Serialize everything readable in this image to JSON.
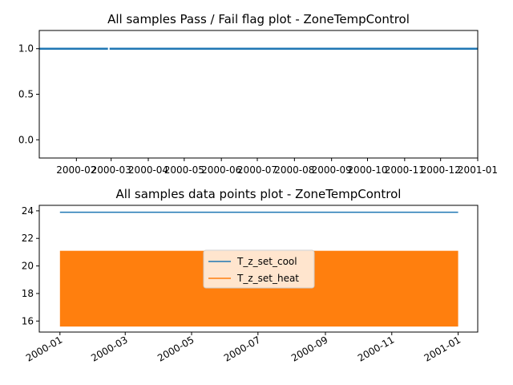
{
  "chart_data": [
    {
      "type": "line",
      "title": "All samples Pass / Fail flag plot - ZoneTempControl",
      "xlabel": "",
      "ylabel": "",
      "xlim": [
        "2000-01-01",
        "2001-01-01"
      ],
      "ylim": [
        -0.2,
        1.2
      ],
      "yticks": [
        0.0,
        0.5,
        1.0
      ],
      "ytick_labels": [
        "0.0",
        "0.5",
        "1.0"
      ],
      "xticks": [
        "2000-02-01",
        "2000-03-01",
        "2000-04-01",
        "2000-05-01",
        "2000-06-01",
        "2000-07-01",
        "2000-08-01",
        "2000-09-01",
        "2000-10-01",
        "2000-11-01",
        "2000-12-01",
        "2001-01-01"
      ],
      "xtick_labels": [
        "2000-02",
        "2000-03",
        "2000-04",
        "2000-05",
        "2000-06",
        "2000-07",
        "2000-08",
        "2000-09",
        "2000-10",
        "2000-11",
        "2000-12",
        "2001-01"
      ],
      "grid": false,
      "series": [
        {
          "color": "#1f77b4",
          "segments": [
            {
              "x": [
                "2000-01-01",
                "2000-02-28"
              ],
              "y": [
                1.0,
                1.0
              ]
            },
            {
              "x": [
                "2000-02-28",
                "2001-01-01"
              ],
              "y": [
                1.0,
                1.0
              ]
            }
          ]
        }
      ]
    },
    {
      "type": "line",
      "title": "All samples data points plot - ZoneTempControl",
      "xlabel": "",
      "ylabel": "",
      "xlim": [
        "1999-12-13",
        "2001-01-19"
      ],
      "ylim": [
        15.2,
        24.4
      ],
      "yticks": [
        16,
        18,
        20,
        22,
        24
      ],
      "ytick_labels": [
        "16",
        "18",
        "20",
        "22",
        "24"
      ],
      "xticks": [
        "2000-01-01",
        "2000-03-01",
        "2000-05-01",
        "2000-07-01",
        "2000-09-01",
        "2000-11-01",
        "2001-01-01"
      ],
      "xtick_labels": [
        "2000-01",
        "2000-03",
        "2000-05",
        "2000-07",
        "2000-09",
        "2000-11",
        "2001-01"
      ],
      "grid": false,
      "legend": "center",
      "series": [
        {
          "name": "T_z_set_cool",
          "color": "#1f77b4",
          "x": [
            "2000-01-01",
            "2001-01-01"
          ],
          "y": [
            23.9,
            23.9
          ]
        },
        {
          "name": "T_z_set_heat",
          "color": "#ff7f0e",
          "x": [
            "2000-01-01",
            "2001-01-01"
          ],
          "y_min": 15.6,
          "y_max": 21.1,
          "fill": true
        }
      ]
    }
  ]
}
